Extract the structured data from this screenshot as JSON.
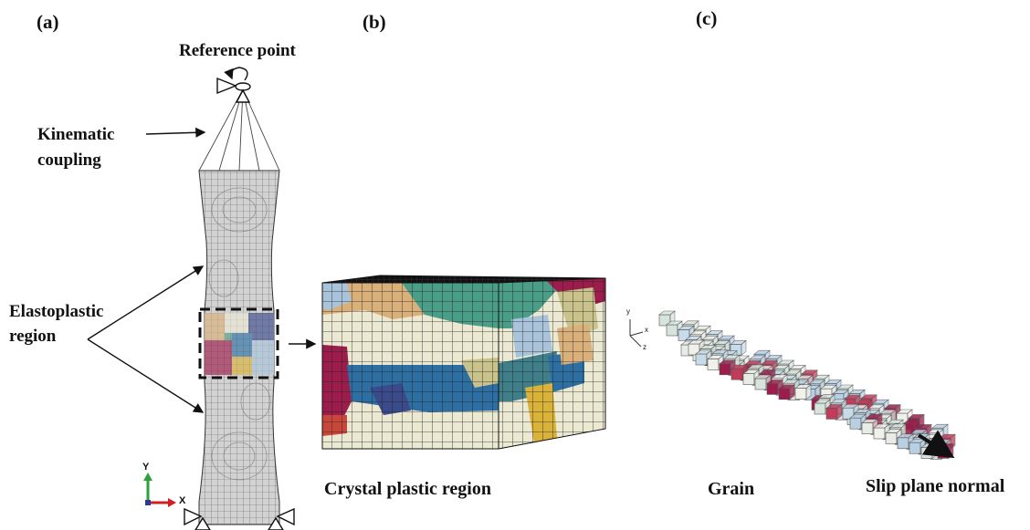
{
  "panels": {
    "a": "(a)",
    "b": "(b)",
    "c": "(c)"
  },
  "labels": {
    "reference_point": "Reference point",
    "kinematic_coupling_line1": "Kinematic",
    "kinematic_coupling_line2": "coupling",
    "elastoplastic_line1": "Elastoplastic",
    "elastoplastic_line2": "region",
    "crystal_plastic": "Crystal plastic region",
    "grain": "Grain",
    "slip_plane_normal": "Slip plane normal"
  },
  "axes_a": {
    "y": "Y",
    "x": "X"
  },
  "axes_c": {
    "y": "y",
    "x": "x",
    "z": "z"
  },
  "colors": {
    "mesh": "#6a6a6a",
    "specimen_fill": "#cfcfcf",
    "grain_green": "#4a9d86",
    "grain_tan": "#d9b07a",
    "grain_blue": "#2e6fa3",
    "grain_crimson": "#9c1d4c",
    "grain_cream": "#ece9d3",
    "grain_lightblue": "#a9c4da",
    "grain_olive": "#c9c28a",
    "grain_red": "#c9473a",
    "grain_yellow": "#d9b23a",
    "grain_navy": "#3b4a8a",
    "grain_teal": "#3f7f8a"
  }
}
